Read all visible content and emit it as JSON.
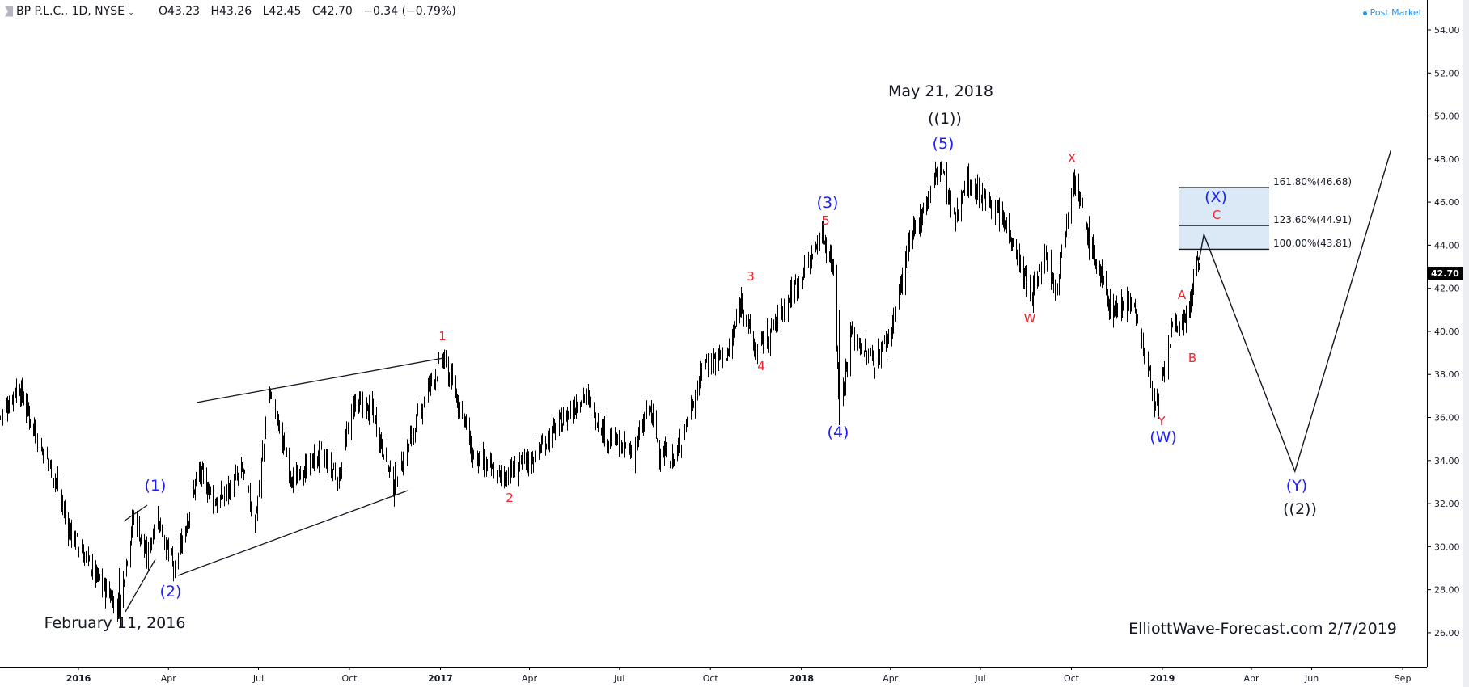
{
  "header": {
    "symbol": "BP P.L.C., 1D, NYSE",
    "open": "O43.23",
    "high": "H43.26",
    "low": "L42.45",
    "close": "C42.70",
    "change": "−0.34 (−0.79%)",
    "post_market": "Post Market"
  },
  "chart_data": {
    "type": "ohlc-bar",
    "ylim": [
      25,
      55
    ],
    "y_ticks": [
      "26.00",
      "28.00",
      "30.00",
      "32.00",
      "34.00",
      "36.00",
      "38.00",
      "40.00",
      "42.00",
      "44.00",
      "46.00",
      "48.00",
      "50.00",
      "52.00",
      "54.00"
    ],
    "x_ticks": [
      "2016",
      "Apr",
      "Jul",
      "Oct",
      "2017",
      "Apr",
      "Jul",
      "Oct",
      "2018",
      "Apr",
      "Jul",
      "Oct",
      "2019",
      "Apr",
      "Jun",
      "Sep"
    ],
    "last_price": "42.70",
    "price_path": [
      [
        "2015-10-14",
        36.0
      ],
      [
        "2015-11-01",
        37.5
      ],
      [
        "2015-11-20",
        35.0
      ],
      [
        "2015-12-10",
        33.0
      ],
      [
        "2015-12-20",
        31.0
      ],
      [
        "2016-01-20",
        28.5
      ],
      [
        "2016-02-11",
        27.2
      ],
      [
        "2016-02-25",
        31.5
      ],
      [
        "2016-03-10",
        29.5
      ],
      [
        "2016-03-20",
        31.5
      ],
      [
        "2016-04-07",
        28.8
      ],
      [
        "2016-05-01",
        33.5
      ],
      [
        "2016-05-20",
        32.0
      ],
      [
        "2016-06-15",
        33.5
      ],
      [
        "2016-06-27",
        31.0
      ],
      [
        "2016-07-12",
        37.2
      ],
      [
        "2016-08-05",
        33.0
      ],
      [
        "2016-09-01",
        34.3
      ],
      [
        "2016-09-20",
        33.2
      ],
      [
        "2016-10-05",
        36.7
      ],
      [
        "2016-10-25",
        36.2
      ],
      [
        "2016-11-14",
        32.8
      ],
      [
        "2016-12-01",
        35.0
      ],
      [
        "2016-12-20",
        37.5
      ],
      [
        "2017-01-03",
        38.7
      ],
      [
        "2017-01-25",
        36.0
      ],
      [
        "2017-02-01",
        34.3
      ],
      [
        "2017-03-01",
        33.2
      ],
      [
        "2017-04-01",
        34.0
      ],
      [
        "2017-04-25",
        35.3
      ],
      [
        "2017-05-25",
        37.1
      ],
      [
        "2017-06-20",
        35.0
      ],
      [
        "2017-07-15",
        34.3
      ],
      [
        "2017-07-31",
        36.5
      ],
      [
        "2017-08-10",
        34.5
      ],
      [
        "2017-08-25",
        34.0
      ],
      [
        "2017-09-25",
        38.5
      ],
      [
        "2017-10-20",
        39.0
      ],
      [
        "2017-11-01",
        41.5
      ],
      [
        "2017-11-15",
        39.0
      ],
      [
        "2017-12-01",
        40.0
      ],
      [
        "2018-01-05",
        43.0
      ],
      [
        "2018-01-22",
        44.5
      ],
      [
        "2018-02-02",
        43.0
      ],
      [
        "2018-02-08",
        36.2
      ],
      [
        "2018-02-20",
        40.0
      ],
      [
        "2018-03-15",
        38.5
      ],
      [
        "2018-04-01",
        40.0
      ],
      [
        "2018-04-20",
        44.0
      ],
      [
        "2018-05-21",
        47.8
      ],
      [
        "2018-06-05",
        45.0
      ],
      [
        "2018-06-15",
        47.0
      ],
      [
        "2018-07-10",
        46.0
      ],
      [
        "2018-08-01",
        44.5
      ],
      [
        "2018-08-20",
        41.5
      ],
      [
        "2018-09-05",
        43.5
      ],
      [
        "2018-09-15",
        42.0
      ],
      [
        "2018-10-03",
        47.2
      ],
      [
        "2018-10-20",
        44.0
      ],
      [
        "2018-11-10",
        41.0
      ],
      [
        "2018-12-01",
        41.5
      ],
      [
        "2018-12-27",
        36.3
      ],
      [
        "2019-01-10",
        40.0
      ],
      [
        "2019-01-25",
        40.5
      ],
      [
        "2019-02-04",
        43.1
      ],
      [
        "2019-02-07",
        42.7
      ]
    ],
    "projection": [
      [
        "2019-02-07",
        43.3
      ],
      [
        "2019-02-12",
        44.5
      ],
      [
        "2019-05-15",
        33.5
      ],
      [
        "2019-08-20",
        48.4
      ]
    ],
    "fib_levels": [
      {
        "label": "161.80%(46.68)",
        "price": 46.68
      },
      {
        "label": "123.60%(44.91)",
        "price": 44.91
      },
      {
        "label": "100.00%(43.81)",
        "price": 43.81
      }
    ],
    "annotations": {
      "may_date": "May 21, 2018",
      "w1": "((1))",
      "w5": "(5)",
      "w3": "(3)",
      "r5": "5",
      "r3": "3",
      "r4": "4",
      "w4": "(4)",
      "r1": "1",
      "r2": "2",
      "w1b": "(1)",
      "w2": "(2)",
      "feb_date": "February 11, 2016",
      "rW": "W",
      "rX": "X",
      "rY": "Y",
      "wW": "(W)",
      "rA": "A",
      "rB": "B",
      "rC": "C",
      "wX": "(X)",
      "wY": "(Y)",
      "w2b": "((2))"
    },
    "watermark": "ElliottWave-Forecast.com 2/7/2019",
    "colors": {
      "bars": "#000000",
      "wave_blue": "#1e1eff",
      "wave_red": "#f0262e",
      "fib_zone": "#dbe8f5"
    }
  }
}
